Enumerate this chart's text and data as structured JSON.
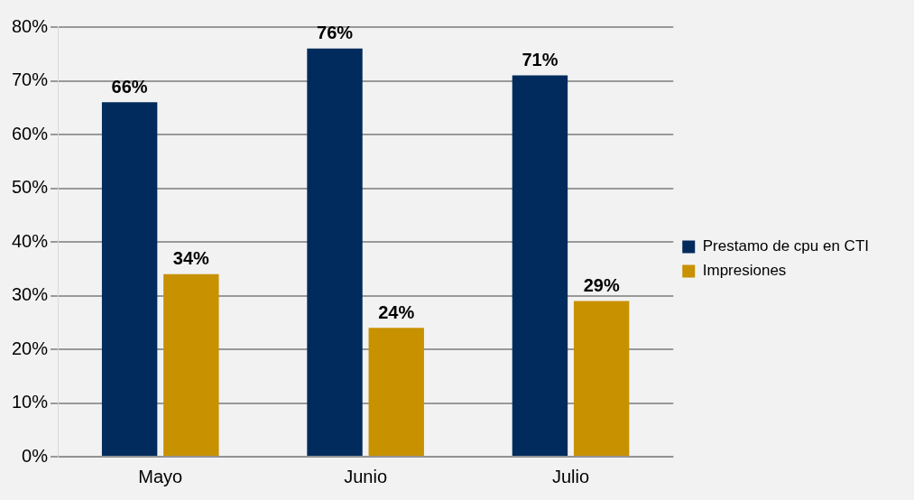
{
  "chart_data": {
    "type": "bar",
    "categories": [
      "Mayo",
      "Junio",
      "Julio"
    ],
    "series": [
      {
        "name": "Prestamo de cpu en CTI",
        "color": "#002b5c",
        "values": [
          66,
          76,
          71
        ],
        "value_labels": [
          "66%",
          "76%",
          "71%"
        ]
      },
      {
        "name": "Impresiones",
        "color": "#c79100",
        "values": [
          34,
          24,
          29
        ],
        "value_labels": [
          "34%",
          "24%",
          "29%"
        ]
      }
    ],
    "ylim": [
      0,
      80
    ],
    "yticks": [
      {
        "value": 0,
        "label": "0%"
      },
      {
        "value": 10,
        "label": "10%"
      },
      {
        "value": 20,
        "label": "20%"
      },
      {
        "value": 30,
        "label": "30%"
      },
      {
        "value": 40,
        "label": "40%"
      },
      {
        "value": 50,
        "label": "50%"
      },
      {
        "value": 60,
        "label": "60%"
      },
      {
        "value": 70,
        "label": "70%"
      },
      {
        "value": 80,
        "label": "80%"
      }
    ],
    "grid": "y",
    "legend": "right"
  }
}
